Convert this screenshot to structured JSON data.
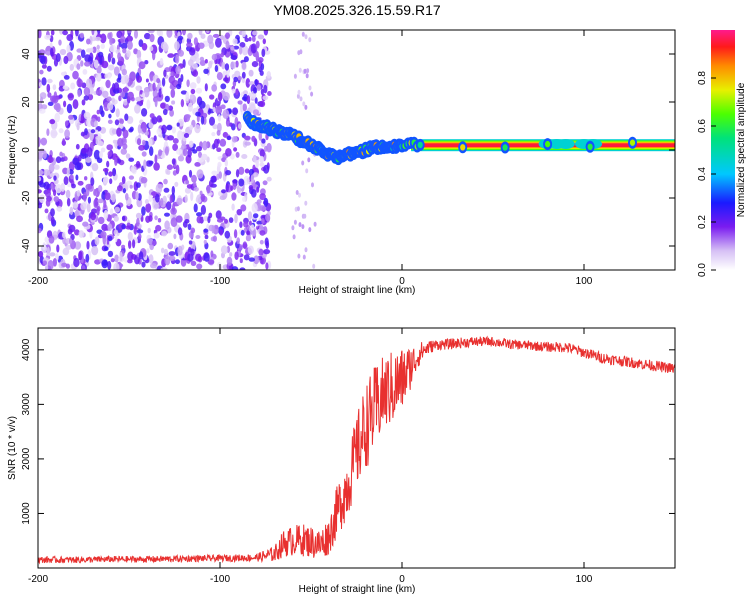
{
  "title": "YM08.2025.326.15.59.R17",
  "chart_data": [
    {
      "type": "heatmap",
      "xlabel": "Height of straight line (km)",
      "ylabel": "Frequency (Hz)",
      "xlim": [
        -200,
        150
      ],
      "ylim": [
        -50,
        50
      ],
      "xticks": [
        -200,
        -100,
        0,
        100
      ],
      "xtick_labels": [
        "-200",
        "-100",
        "0",
        "100"
      ],
      "yticks": [
        -40,
        -20,
        0,
        20,
        40
      ],
      "ytick_labels": [
        "-40",
        "-20",
        "0",
        "20",
        "40"
      ],
      "colorbar": {
        "label": "Normalized spectral amplitude",
        "range": [
          0,
          1
        ],
        "ticks": [
          0.0,
          0.2,
          0.4,
          0.6,
          0.8
        ],
        "tick_labels": [
          "0.0",
          "0.2",
          "0.4",
          "0.6",
          "0.8"
        ]
      },
      "noise_region_x": [
        -200,
        -75
      ],
      "signal_track": [
        {
          "x": -85,
          "f": 13
        },
        {
          "x": -80,
          "f": 11
        },
        {
          "x": -75,
          "f": 10
        },
        {
          "x": -70,
          "f": 8
        },
        {
          "x": -65,
          "f": 7
        },
        {
          "x": -60,
          "f": 6
        },
        {
          "x": -55,
          "f": 4
        },
        {
          "x": -50,
          "f": 2
        },
        {
          "x": -45,
          "f": 0
        },
        {
          "x": -40,
          "f": -2
        },
        {
          "x": -35,
          "f": -3
        },
        {
          "x": -30,
          "f": -2
        },
        {
          "x": -25,
          "f": -1
        },
        {
          "x": -20,
          "f": 0
        },
        {
          "x": -15,
          "f": 1
        },
        {
          "x": -10,
          "f": 1
        },
        {
          "x": -5,
          "f": 1
        },
        {
          "x": 0,
          "f": 2
        },
        {
          "x": 10,
          "f": 2
        },
        {
          "x": 150,
          "f": 2
        }
      ],
      "band_center": 2,
      "band_halfwidth": 2.5
    },
    {
      "type": "line",
      "xlabel": "Height of straight line (km)",
      "ylabel": "SNR (10 * v/v)",
      "xlim": [
        -200,
        150
      ],
      "ylim": [
        0,
        4400
      ],
      "xticks": [
        -200,
        -100,
        0,
        100
      ],
      "xtick_labels": [
        "-200",
        "-100",
        "0",
        "100"
      ],
      "yticks": [
        1000,
        2000,
        3000,
        4000
      ],
      "ytick_labels": [
        "1000",
        "2000",
        "3000",
        "4000"
      ],
      "color": "#e8302f",
      "series": [
        {
          "name": "SNR",
          "x": [
            -200,
            -180,
            -160,
            -140,
            -120,
            -100,
            -80,
            -70,
            -65,
            -60,
            -55,
            -50,
            -45,
            -40,
            -35,
            -30,
            -25,
            -20,
            -15,
            -10,
            -5,
            0,
            5,
            10,
            15,
            20,
            25,
            30,
            40,
            50,
            60,
            70,
            80,
            90,
            100,
            110,
            120,
            130,
            140,
            150
          ],
          "y": [
            150,
            150,
            160,
            160,
            170,
            180,
            190,
            260,
            450,
            500,
            520,
            480,
            420,
            600,
            1100,
            1500,
            2100,
            2600,
            2900,
            3200,
            3300,
            3450,
            3700,
            3950,
            4050,
            4100,
            4100,
            4120,
            4150,
            4150,
            4100,
            4080,
            4050,
            4050,
            3950,
            3850,
            3800,
            3750,
            3700,
            3650
          ],
          "noise": [
            60,
            60,
            60,
            60,
            60,
            60,
            70,
            150,
            250,
            280,
            300,
            300,
            300,
            350,
            500,
            600,
            700,
            800,
            800,
            700,
            700,
            600,
            400,
            200,
            120,
            100,
            100,
            100,
            90,
            90,
            90,
            90,
            90,
            100,
            100,
            100,
            100,
            100,
            100,
            100
          ]
        }
      ]
    }
  ]
}
